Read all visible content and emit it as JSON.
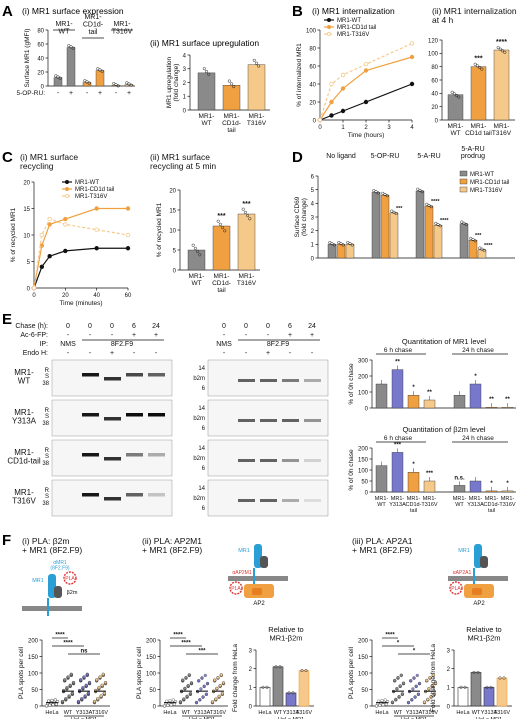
{
  "colors": {
    "wt": "#8a8a8a",
    "cd1d": "#f0a040",
    "t316v": "#f5c98a",
    "y313a": "#7777cc",
    "hela": "#ffffff"
  },
  "panelA": {
    "letter": "A",
    "i": {
      "title": "(i) MR1 surface expression",
      "ylabel": "Surface MR1 (gMFI)",
      "ticks": [
        "0",
        "20",
        "40",
        "60",
        "80"
      ],
      "groups": [
        "MR1-\nWT",
        "MR1-\nCD1d-\ntail",
        "MR1-\nT316V"
      ],
      "xrow_label": "5-OP-RU:",
      "signs": [
        "-",
        "+",
        "-",
        "+",
        "-",
        "+"
      ],
      "values": [
        12,
        55,
        5,
        22,
        1,
        2
      ]
    },
    "ii": {
      "title": "(ii) MR1 surface upregulation",
      "ylabel": "MR1 upregulation\n(fold change)",
      "ticks": [
        "0",
        "1",
        "2",
        "3",
        "4"
      ],
      "labels": [
        "MR1-\nWT",
        "MR1-\nCD1d-\ntail",
        "MR1-\nT316V"
      ],
      "values": [
        2.7,
        1.8,
        3.3
      ]
    }
  },
  "panelB": {
    "letter": "B",
    "i": {
      "title": "(i) MR1 internalization",
      "ylabel": "% of internalized MR1",
      "xlabel": "Time (hours)",
      "yticks": [
        "0",
        "20",
        "40",
        "60",
        "80",
        "100"
      ],
      "xticks": [
        "0",
        "1",
        "2",
        "3",
        "4"
      ],
      "legend": [
        "MR1-WT",
        "MR1-CD1d tail",
        "MR1-T316V"
      ],
      "series": [
        {
          "name": "MR1-WT",
          "x": [
            0,
            0.5,
            1,
            2,
            4
          ],
          "y": [
            0,
            5,
            10,
            20,
            40
          ]
        },
        {
          "name": "MR1-CD1d tail",
          "x": [
            0,
            0.5,
            1,
            2,
            4
          ],
          "y": [
            0,
            20,
            35,
            55,
            70
          ]
        },
        {
          "name": "MR1-T316V",
          "x": [
            0,
            0.5,
            1,
            2,
            4
          ],
          "y": [
            0,
            40,
            50,
            62,
            85
          ]
        }
      ]
    },
    "ii": {
      "title": "(ii) MR1 internalization\nat 4 h",
      "ticks": [
        "0",
        "20",
        "40",
        "60",
        "80",
        "100",
        "120"
      ],
      "labels": [
        "MR1-\nWT",
        "MR1-\nCD1d tail",
        "MR1-\nT316V"
      ],
      "values": [
        38,
        80,
        105
      ],
      "stars": [
        "",
        "***",
        "****"
      ]
    }
  },
  "panelC": {
    "letter": "C",
    "i": {
      "title": "(i) MR1 surface\nrecycling",
      "ylabel": "% of recycled MR1",
      "xlabel": "Time (minutes)",
      "yticks": [
        "0",
        "5",
        "10",
        "15",
        "20"
      ],
      "xticks": [
        "0",
        "20",
        "40",
        "60"
      ],
      "legend": [
        "MR1-WT",
        "MR1-CD1d tail",
        "MR1-T316V"
      ],
      "series": [
        {
          "name": "MR1-WT",
          "x": [
            0,
            5,
            10,
            20,
            40,
            60
          ],
          "y": [
            0,
            4,
            6,
            7,
            7.5,
            7.5
          ]
        },
        {
          "name": "MR1-CD1d tail",
          "x": [
            0,
            5,
            10,
            20,
            40,
            60
          ],
          "y": [
            0,
            8,
            12,
            13,
            15,
            15
          ]
        },
        {
          "name": "MR1-T316V",
          "x": [
            0,
            5,
            10,
            20,
            40,
            60
          ],
          "y": [
            0,
            10,
            13,
            12,
            11,
            10
          ]
        }
      ]
    },
    "ii": {
      "title": "(ii) MR1 surface\nrecycling at 5 min",
      "ylabel": "% of recycled MR1",
      "ticks": [
        "0",
        "5",
        "10",
        "15",
        "20"
      ],
      "labels": [
        "MR1-\nWT",
        "MR1-\nCD1d-\ntail",
        "MR1-\nT316V"
      ],
      "values": [
        5,
        11,
        14
      ],
      "stars": [
        "",
        "***",
        "***"
      ]
    }
  },
  "panelD": {
    "letter": "D",
    "ylabel": "Surface CD69\n(fold change)",
    "ticks": [
      "0",
      "1",
      "2",
      "3",
      "4",
      "5",
      "6"
    ],
    "groups": [
      "No ligand",
      "5-OP-RU",
      "5-A-RU",
      "5-A-RU\nprodrug"
    ],
    "legend": [
      "MR1-WT",
      "MR1-CD1d tail",
      "MR1-T316V"
    ],
    "values": [
      [
        1,
        1,
        1
      ],
      [
        4.8,
        4.6,
        3.3
      ],
      [
        4.9,
        3.8,
        2.4
      ],
      [
        2.5,
        1.3,
        0.6
      ]
    ],
    "stars": [
      [
        "",
        "",
        ""
      ],
      [
        "",
        "",
        "***"
      ],
      [
        "",
        "****",
        "****"
      ],
      [
        "",
        "***",
        "****"
      ]
    ]
  },
  "panelE": {
    "letter": "E",
    "chase_label": "Chase (h):",
    "chase": [
      "0",
      "0",
      "0",
      "6",
      "24"
    ],
    "ac_label": "Ac-6-FP:",
    "ac": [
      "-",
      "-",
      "-",
      "+",
      "+"
    ],
    "ip_label": "IP:",
    "ip_nms": "NMS",
    "ip_ab": "8F2.F9",
    "endo_label": "Endo H:",
    "endo": [
      "-",
      "-",
      "+",
      "-",
      "-"
    ],
    "rows": [
      "MR1-\nWT",
      "MR1-\nY313A",
      "MR1-\nCD1d-tail",
      "MR1-\nT316V"
    ],
    "mw_left": [
      "R",
      "S",
      "38"
    ],
    "mw_right": [
      "14",
      "b2m",
      "6"
    ],
    "quant1": {
      "title": "Quantitation of MR1 level",
      "h6": "6 h chase",
      "h24": "24 h chase",
      "ylabel": "% of 0h chase",
      "ticks": [
        "0",
        "100",
        "200",
        "300"
      ],
      "values": [
        150,
        240,
        80,
        50,
        80,
        150,
        5,
        5
      ],
      "stars": [
        "",
        "**",
        "*",
        "**",
        "",
        "*",
        "**",
        "**"
      ]
    },
    "quant2": {
      "title": "Quantitation of β2m level",
      "h6": "6 h chase",
      "h24": "24 h chase",
      "ylabel": "% of 0h chase",
      "ticks": [
        "0",
        "50",
        "100",
        "150",
        "200"
      ],
      "values": [
        120,
        180,
        90,
        50,
        30,
        50,
        5,
        5
      ],
      "stars": [
        "",
        "***",
        "*",
        "***",
        "n.s.",
        "",
        "*",
        "*"
      ],
      "labels": [
        "MR1-\nWT",
        "MR1-\nY313A",
        "MR1-\nCD1d-\ntail",
        "MR1-\nT316V",
        "MR1-\nWT",
        "MR1-\nY313A",
        "MR1-\nCD1d-\ntail",
        "MR1-\nT316V"
      ]
    }
  },
  "panelF": {
    "letter": "F",
    "i": {
      "title": "(i) PLA: β2m\n+ MR1 (8F2.F9)",
      "ylabel": "PLA spots per cell",
      "ticks": [
        "0",
        "50",
        "100",
        "150",
        "200"
      ],
      "groups": [
        "HeLa",
        "WT",
        "Y313A",
        "T316V"
      ],
      "sub": "HeLa.MR1",
      "stars": [
        "****",
        "****",
        "ns"
      ]
    },
    "ii": {
      "title": "(ii) PLA: AP2M1\n+ MR1 (8F2.F9)",
      "ylabel": "PLA spots per cell",
      "ticks": [
        "0",
        "50",
        "100",
        "150",
        "200"
      ],
      "groups": [
        "HeLa",
        "WT",
        "Y313A",
        "T316V"
      ],
      "sub": "HeLa.MR1",
      "stars": [
        "****",
        "****",
        "***"
      ],
      "rel": "Relative to\nMR1-β2m",
      "fold_label": "Fold change from HeLa",
      "fold_ticks": [
        "0",
        "1",
        "2",
        "3"
      ],
      "fold": [
        1,
        2.1,
        0.7,
        1.9
      ]
    },
    "iii": {
      "title": "(iii) PLA: AP2A1\n+ MR1 (8F2.F9)",
      "ylabel": "PLA spots per cell",
      "ticks": [
        "0",
        "50",
        "100",
        "150",
        "200"
      ],
      "groups": [
        "HeLa",
        "WT",
        "Y313A",
        "T316V"
      ],
      "sub": "HeLa.MR1",
      "stars": [
        "****",
        "*",
        "*"
      ],
      "rel": "Relative to\nMR1-β2m",
      "fold_label": "Fold change from HeLa",
      "fold_ticks": [
        "0",
        "1",
        "2",
        "3"
      ],
      "fold": [
        1,
        1.8,
        1.0,
        1.5
      ]
    },
    "diagram_labels": {
      "mr1": "MR1",
      "ab": "αMR1\n(8F2.F9)",
      "b2m": "β2m",
      "pla": "PLA",
      "ap2m": "αAP2M1",
      "ap2a": "αAP2A1",
      "ap2": "AP2"
    }
  }
}
